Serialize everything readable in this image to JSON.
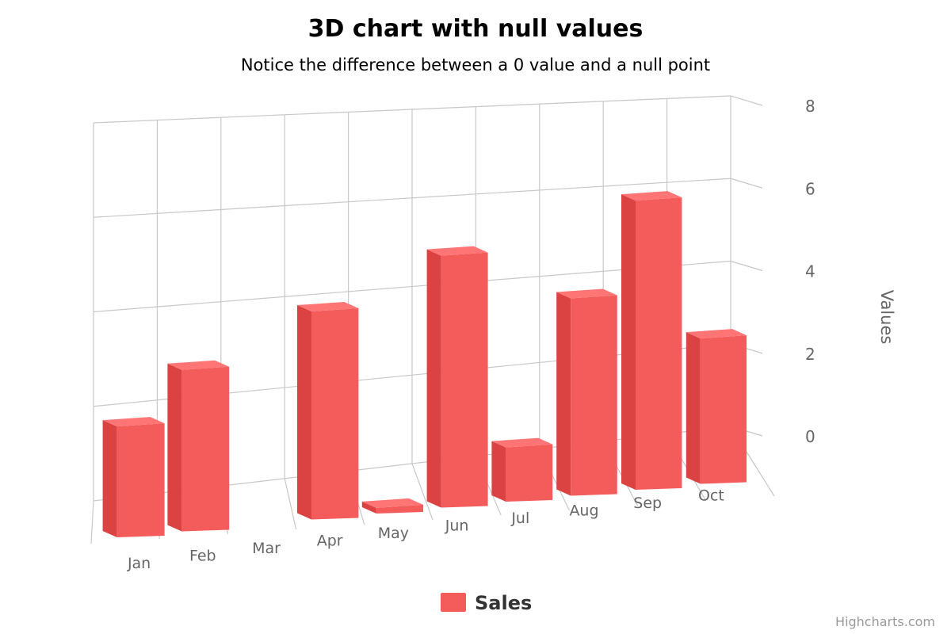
{
  "chart_data": {
    "type": "bar",
    "title": "3D chart with null values",
    "subtitle": "Notice the difference between a 0 value and a null point",
    "categories": [
      "Jan",
      "Feb",
      "Mar",
      "Apr",
      "May",
      "Jun",
      "Jul",
      "Aug",
      "Sep",
      "Oct"
    ],
    "series": [
      {
        "name": "Sales",
        "values": [
          2,
          3,
          null,
          4,
          0,
          5,
          1,
          4,
          6,
          3
        ],
        "color": "#f45b5b"
      }
    ],
    "xlabel": "",
    "ylabel": "Values",
    "ylim": [
      0,
      8
    ],
    "yticks": [
      0,
      2,
      4,
      6,
      8
    ],
    "grid": true,
    "legend": "bottom-center",
    "three_d": true
  },
  "credits": "Highcharts.com"
}
